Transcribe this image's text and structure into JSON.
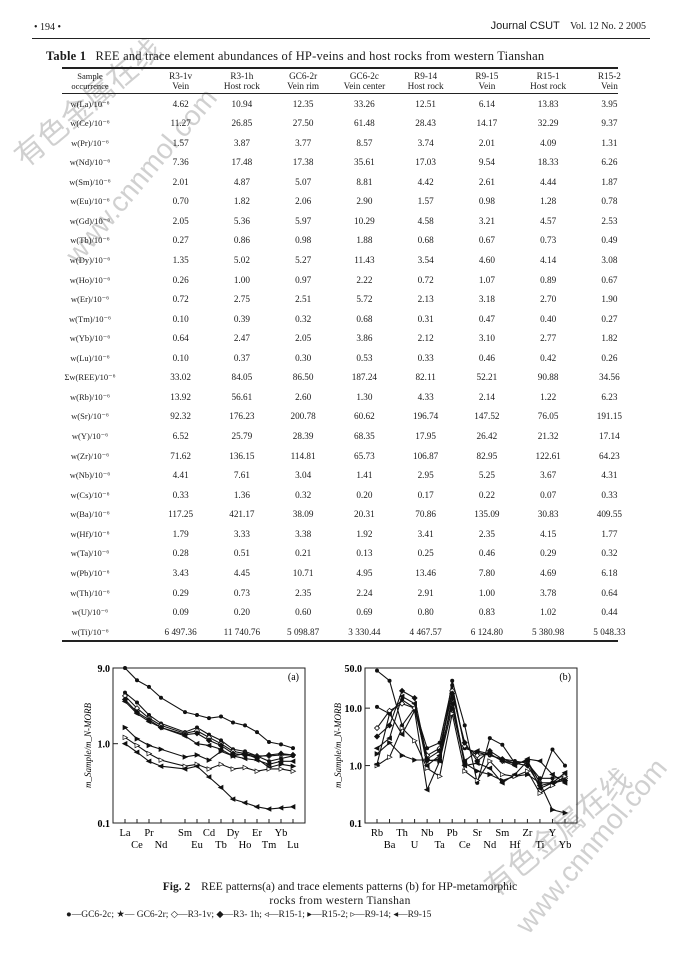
{
  "header": {
    "page_number": "• 194 •",
    "journal": "Journal CSUT",
    "volume_issue": "Vol. 12   No. 2   2005"
  },
  "table": {
    "label": "Table 1",
    "title": "REE and trace element abundances of HP-veins and host rocks from western Tianshan",
    "header_label": [
      "Sample",
      "occurrence"
    ],
    "columns": [
      {
        "sample": "R3-1v",
        "occurrence": "Vein"
      },
      {
        "sample": "R3-1h",
        "occurrence": "Host rock"
      },
      {
        "sample": "GC6-2r",
        "occurrence": "Vein rim"
      },
      {
        "sample": "GC6-2c",
        "occurrence": "Vein center"
      },
      {
        "sample": "R9-14",
        "occurrence": "Host rock"
      },
      {
        "sample": "R9-15",
        "occurrence": "Vein"
      },
      {
        "sample": "R15-1",
        "occurrence": "Host rock"
      },
      {
        "sample": "R15-2",
        "occurrence": "Vein"
      }
    ],
    "rows": [
      {
        "label": "w(La)/10⁻⁶",
        "values": [
          "4.62",
          "10.94",
          "12.35",
          "33.26",
          "12.51",
          "6.14",
          "13.83",
          "3.95"
        ]
      },
      {
        "label": "w(Ce)/10⁻⁶",
        "values": [
          "11.27",
          "26.85",
          "27.50",
          "61.48",
          "28.43",
          "14.17",
          "32.29",
          "9.37"
        ]
      },
      {
        "label": "w(Pr)/10⁻⁶",
        "values": [
          "1.57",
          "3.87",
          "3.77",
          "8.57",
          "3.74",
          "2.01",
          "4.09",
          "1.31"
        ]
      },
      {
        "label": "w(Nd)/10⁻⁶",
        "values": [
          "7.36",
          "17.48",
          "17.38",
          "35.61",
          "17.03",
          "9.54",
          "18.33",
          "6.26"
        ]
      },
      {
        "label": "w(Sm)/10⁻⁶",
        "values": [
          "2.01",
          "4.87",
          "5.07",
          "8.81",
          "4.42",
          "2.61",
          "4.44",
          "1.87"
        ]
      },
      {
        "label": "w(Eu)/10⁻⁶",
        "values": [
          "0.70",
          "1.82",
          "2.06",
          "2.90",
          "1.57",
          "0.98",
          "1.28",
          "0.78"
        ]
      },
      {
        "label": "w(Gd)/10⁻⁶",
        "values": [
          "2.05",
          "5.36",
          "5.97",
          "10.29",
          "4.58",
          "3.21",
          "4.57",
          "2.53"
        ]
      },
      {
        "label": "w(Tb)/10⁻⁶",
        "values": [
          "0.27",
          "0.86",
          "0.98",
          "1.88",
          "0.68",
          "0.67",
          "0.73",
          "0.49"
        ]
      },
      {
        "label": "w(Dy)/10⁻⁶",
        "values": [
          "1.35",
          "5.02",
          "5.27",
          "11.43",
          "3.54",
          "4.60",
          "4.14",
          "3.08"
        ]
      },
      {
        "label": "w(Ho)/10⁻⁶",
        "values": [
          "0.26",
          "1.00",
          "0.97",
          "2.22",
          "0.72",
          "1.07",
          "0.89",
          "0.67"
        ]
      },
      {
        "label": "w(Er)/10⁻⁶",
        "values": [
          "0.72",
          "2.75",
          "2.51",
          "5.72",
          "2.13",
          "3.18",
          "2.70",
          "1.90"
        ]
      },
      {
        "label": "w(Tm)/10⁻⁶",
        "values": [
          "0.10",
          "0.39",
          "0.32",
          "0.68",
          "0.31",
          "0.47",
          "0.40",
          "0.27"
        ]
      },
      {
        "label": "w(Yb)/10⁻⁶",
        "values": [
          "0.64",
          "2.47",
          "2.05",
          "3.86",
          "2.12",
          "3.10",
          "2.77",
          "1.82"
        ]
      },
      {
        "label": "w(Lu)/10⁻⁶",
        "values": [
          "0.10",
          "0.37",
          "0.30",
          "0.53",
          "0.33",
          "0.46",
          "0.42",
          "0.26"
        ]
      },
      {
        "label": "Σw(REE)/10⁻⁶",
        "values": [
          "33.02",
          "84.05",
          "86.50",
          "187.24",
          "82.11",
          "52.21",
          "90.88",
          "34.56"
        ]
      },
      {
        "label": "w(Rb)/10⁻⁶",
        "values": [
          "13.92",
          "56.61",
          "2.60",
          "1.30",
          "4.33",
          "2.14",
          "1.22",
          "6.23"
        ]
      },
      {
        "label": "w(Sr)/10⁻⁶",
        "values": [
          "92.32",
          "176.23",
          "200.78",
          "60.62",
          "196.74",
          "147.52",
          "76.05",
          "191.15"
        ]
      },
      {
        "label": "w(Y)/10⁻⁶",
        "values": [
          "6.52",
          "25.79",
          "28.39",
          "68.35",
          "17.95",
          "26.42",
          "21.32",
          "17.14"
        ]
      },
      {
        "label": "w(Zr)/10⁻⁶",
        "values": [
          "71.62",
          "136.15",
          "114.81",
          "65.73",
          "106.87",
          "82.95",
          "122.61",
          "64.23"
        ]
      },
      {
        "label": "w(Nb)/10⁻⁶",
        "values": [
          "4.41",
          "7.61",
          "3.04",
          "1.41",
          "2.95",
          "5.25",
          "3.67",
          "4.31"
        ]
      },
      {
        "label": "w(Cs)/10⁻⁶",
        "values": [
          "0.33",
          "1.36",
          "0.32",
          "0.20",
          "0.17",
          "0.22",
          "0.07",
          "0.33"
        ]
      },
      {
        "label": "w(Ba)/10⁻⁶",
        "values": [
          "117.25",
          "421.17",
          "38.09",
          "20.31",
          "70.86",
          "135.09",
          "30.83",
          "409.55"
        ]
      },
      {
        "label": "w(Hf)/10⁻⁶",
        "values": [
          "1.79",
          "3.33",
          "3.38",
          "1.92",
          "3.41",
          "2.35",
          "4.15",
          "1.77"
        ]
      },
      {
        "label": "w(Ta)/10⁻⁶",
        "values": [
          "0.28",
          "0.51",
          "0.21",
          "0.13",
          "0.25",
          "0.46",
          "0.29",
          "0.32"
        ]
      },
      {
        "label": "w(Pb)/10⁻⁶",
        "values": [
          "3.43",
          "4.45",
          "10.71",
          "4.95",
          "13.46",
          "7.80",
          "4.69",
          "6.18"
        ]
      },
      {
        "label": "w(Th)/10⁻⁶",
        "values": [
          "0.29",
          "0.73",
          "2.35",
          "2.24",
          "2.91",
          "1.00",
          "3.78",
          "0.64"
        ]
      },
      {
        "label": "w(U)/10⁻⁶",
        "values": [
          "0.09",
          "0.20",
          "0.60",
          "0.69",
          "0.80",
          "0.83",
          "1.02",
          "0.44"
        ]
      },
      {
        "label": "w(Ti)/10⁻⁶",
        "values": [
          "6 497.36",
          "11 740.76",
          "5 098.87",
          "3 330.44",
          "4 467.57",
          "6 124.80",
          "5 380.98",
          "5 048.33"
        ]
      }
    ]
  },
  "chart_data": [
    {
      "type": "line",
      "panel_label": "(a)",
      "ylabel": "m_Sample/m_N-MORB",
      "yscale": "log",
      "ylim": [
        0.1,
        9.0
      ],
      "yticks": [
        "0.1",
        "1.0",
        "9.0"
      ],
      "categories": [
        "La",
        "Ce",
        "Pr",
        "Nd",
        "Sm",
        "Eu",
        "Cd",
        "Tb",
        "Dy",
        "Ho",
        "Er",
        "Tm",
        "Yb",
        "Lu"
      ],
      "series": [
        {
          "values": [
            9.0,
            6.3,
            5.2,
            3.8,
            2.5,
            2.3,
            2.1,
            2.2,
            1.85,
            1.7,
            1.4,
            1.05,
            0.98,
            0.88
          ]
        },
        {
          "values": [
            4.4,
            3.3,
            2.3,
            1.8,
            1.4,
            1.6,
            1.3,
            1.1,
            0.85,
            0.8,
            0.7,
            0.6,
            0.65,
            0.7
          ]
        },
        {
          "values": [
            4.0,
            2.8,
            2.1,
            1.7,
            1.35,
            1.45,
            1.2,
            1.0,
            0.8,
            0.75,
            0.7,
            0.7,
            0.72,
            0.72
          ]
        },
        {
          "values": [
            3.6,
            2.5,
            2.0,
            1.6,
            1.3,
            1.35,
            1.1,
            0.95,
            0.75,
            0.72,
            0.68,
            0.72,
            0.75,
            0.72
          ]
        },
        {
          "values": [
            3.4,
            2.4,
            1.9,
            1.6,
            1.25,
            1.0,
            0.95,
            0.85,
            0.7,
            0.65,
            0.62,
            0.55,
            0.6,
            0.6
          ]
        },
        {
          "values": [
            1.6,
            1.15,
            0.95,
            0.85,
            0.68,
            0.72,
            0.62,
            0.8,
            0.7,
            0.75,
            0.65,
            0.5,
            0.55,
            0.52
          ]
        },
        {
          "values": [
            1.2,
            0.95,
            0.75,
            0.62,
            0.52,
            0.55,
            0.48,
            0.55,
            0.48,
            0.5,
            0.45,
            0.48,
            0.48,
            0.45
          ]
        },
        {
          "values": [
            1.0,
            0.78,
            0.6,
            0.52,
            0.48,
            0.52,
            0.38,
            0.28,
            0.2,
            0.18,
            0.16,
            0.15,
            0.155,
            0.16
          ]
        }
      ]
    },
    {
      "type": "line",
      "panel_label": "(b)",
      "ylabel": "m_Sample/m_N-MORB",
      "yscale": "log",
      "ylim": [
        0.1,
        50.0
      ],
      "yticks": [
        "0.1",
        "1.0",
        "10.0",
        "50.0"
      ],
      "categories": [
        "Rb",
        "Ba",
        "Th",
        "U",
        "Nb",
        "Ta",
        "Pb",
        "Ce",
        "Sr",
        "Nd",
        "Sm",
        "Hf",
        "Zr",
        "Ti",
        "Y",
        "Yb"
      ],
      "series": [
        {
          "values": [
            45,
            30,
            5,
            10,
            1.2,
            1.3,
            30,
            5,
            0.5,
            3,
            2.3,
            1.1,
            1.2,
            0.5,
            1.9,
            1.0
          ]
        },
        {
          "values": [
            10.5,
            8,
            14,
            10,
            2,
            2.5,
            25,
            2,
            1.7,
            1.5,
            1.3,
            1.2,
            1.1,
            0.6,
            0.6,
            0.65
          ]
        },
        {
          "values": [
            4.5,
            9,
            12,
            10,
            1.5,
            2,
            20,
            2.2,
            1.5,
            1.6,
            1.2,
            1.1,
            1.2,
            0.5,
            0.5,
            0.6
          ]
        },
        {
          "values": [
            3.2,
            5,
            20,
            15,
            1.3,
            1.8,
            18,
            2.5,
            1.2,
            1.8,
            1.3,
            1.1,
            1.0,
            0.45,
            0.5,
            0.55
          ]
        },
        {
          "values": [
            2,
            3,
            16,
            12,
            1.0,
            1.5,
            12,
            1.2,
            1.8,
            1.6,
            1.2,
            1.0,
            1.3,
            1.2,
            0.7,
            0.5
          ]
        },
        {
          "values": [
            1.6,
            2.5,
            1.5,
            1.25,
            1.25,
            1.2,
            10,
            1.1,
            0.8,
            0.7,
            0.55,
            0.65,
            0.7,
            0.5,
            0.17,
            0.15
          ]
        },
        {
          "values": [
            1.0,
            1.4,
            4.5,
            2.7,
            0.9,
            0.65,
            8,
            0.8,
            0.55,
            1.2,
            0.7,
            0.65,
            0.8,
            0.33,
            0.45,
            0.65
          ]
        },
        {
          "values": [
            1.05,
            8,
            3.5,
            9,
            0.38,
            1.2,
            15,
            1.0,
            1.1,
            0.9,
            0.5,
            0.7,
            1.2,
            0.4,
            0.5,
            0.75
          ]
        }
      ]
    }
  ],
  "figure": {
    "label": "Fig. 2",
    "caption_line1": "REE patterns(a) and trace elements patterns (b) for HP-metamorphic",
    "caption_line2": "rocks from western Tianshan",
    "legend": "●—GC6-2c;  ★— GC6-2r;  ◇—R3-1v;  ◆—R3- 1h;  ◃—R15-1;  ▸—R15-2;  ▹—R9-14;  ◂—R9-15"
  },
  "watermark": {
    "text_cn": "有色金属在线",
    "text_url": "www.cnnmol.com"
  }
}
